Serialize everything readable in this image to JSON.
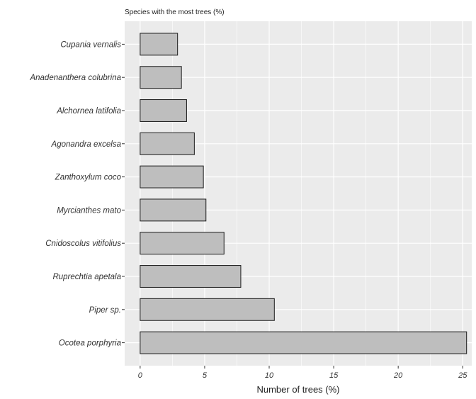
{
  "chart_data": {
    "type": "bar",
    "orientation": "horizontal",
    "title": "Species with the most trees (%)",
    "xlabel": "Number of trees (%)",
    "ylabel": "",
    "categories": [
      "Cupania vernalis",
      "Anadenanthera colubrina",
      "Alchornea latifolia",
      "Agonandra excelsa",
      "Zanthoxylum coco",
      "Myrcianthes mato",
      "Cnidoscolus vitifolius",
      "Ruprechtia apetala",
      "Piper sp.",
      "Ocotea porphyria"
    ],
    "values": [
      2.9,
      3.2,
      3.6,
      4.2,
      4.9,
      5.1,
      6.5,
      7.8,
      10.4,
      25.3
    ],
    "xlim": [
      -1.2,
      25.7
    ],
    "xticks": [
      0,
      5,
      10,
      15,
      20,
      25
    ],
    "xtick_labels": [
      "0",
      "5",
      "10",
      "15",
      "20",
      "25"
    ],
    "grid": true,
    "colors": {
      "panel_background": "#ebebeb",
      "grid_major": "#ffffff",
      "bar_fill": "#bebebe",
      "bar_outline": "#1a1a1a"
    }
  }
}
